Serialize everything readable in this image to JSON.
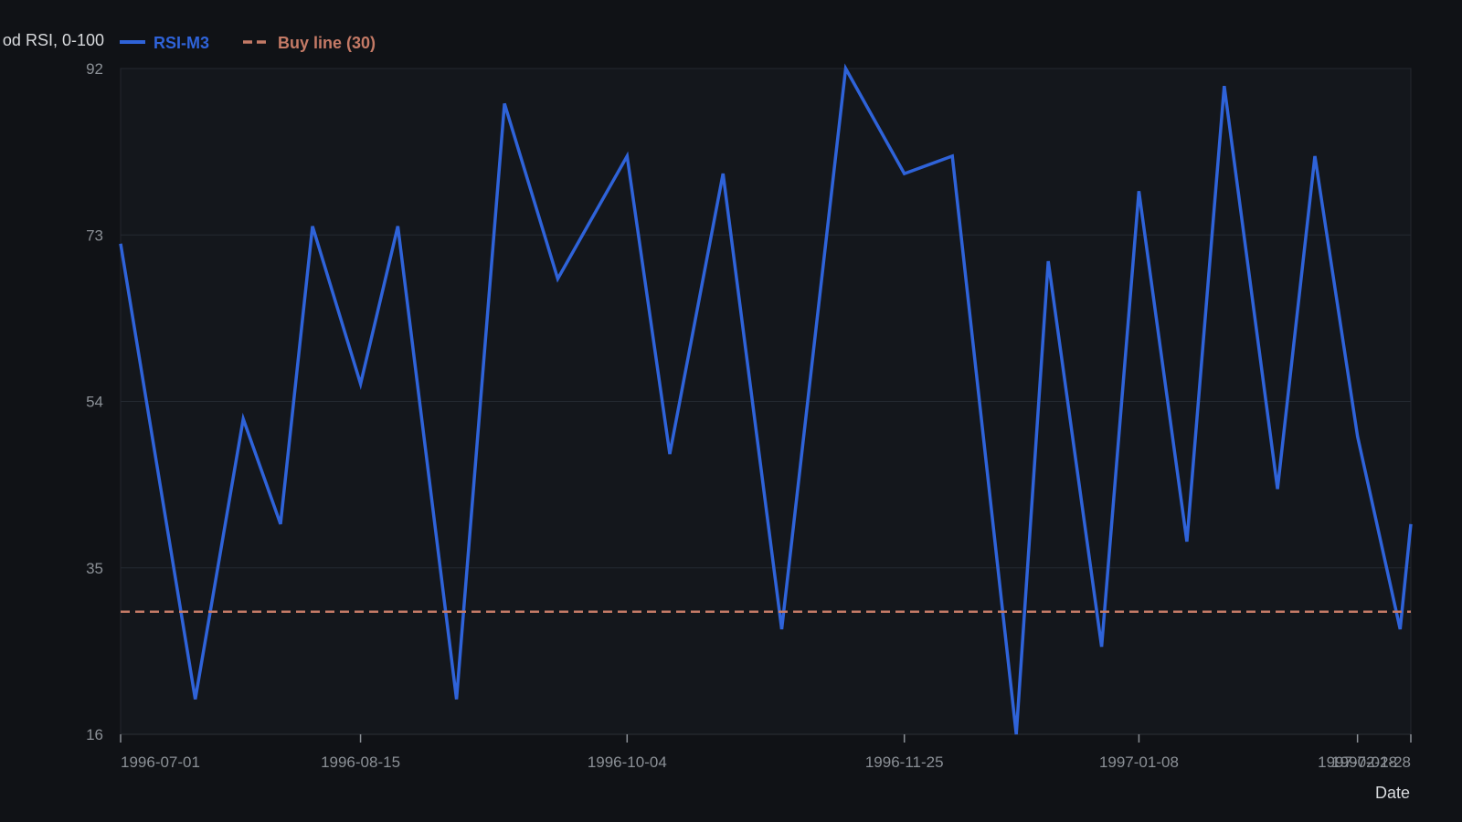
{
  "chart_data": {
    "type": "line",
    "title": "",
    "xlabel": "Date",
    "ylabel": "od RSI, 0-100",
    "ylim": [
      16,
      92
    ],
    "yticks": [
      16,
      35,
      54,
      73,
      92
    ],
    "xlim": [
      "1996-07-01",
      "1997-02-28"
    ],
    "xticks": [
      "1996-07-01",
      "1996-08-15",
      "1996-10-04",
      "1996-11-25",
      "1997-01-08",
      "1997-02-18",
      "1997-02-28"
    ],
    "grid": true,
    "legend_position": "top-left",
    "series": [
      {
        "name": "RSI-M3",
        "color": "#2f63d9",
        "style": "solid",
        "x": [
          "1996-07-01",
          "1996-07-15",
          "1996-07-24",
          "1996-07-31",
          "1996-08-06",
          "1996-08-15",
          "1996-08-22",
          "1996-09-02",
          "1996-09-11",
          "1996-09-21",
          "1996-10-04",
          "1996-10-12",
          "1996-10-22",
          "1996-11-02",
          "1996-11-14",
          "1996-11-25",
          "1996-12-04",
          "1996-12-16",
          "1996-12-22",
          "1997-01-01",
          "1997-01-08",
          "1997-01-17",
          "1997-01-24",
          "1997-02-03",
          "1997-02-10",
          "1997-02-18",
          "1997-02-26",
          "1997-02-28"
        ],
        "y": [
          72,
          20,
          52,
          40,
          74,
          56,
          74,
          20,
          88,
          68,
          82,
          48,
          80,
          28,
          92,
          80,
          82,
          16,
          70,
          26,
          78,
          38,
          90,
          44,
          82,
          50,
          28,
          40
        ]
      },
      {
        "name": "Buy line (30)",
        "color": "#c47a66",
        "style": "dashed",
        "x": [
          "1996-07-01",
          "1997-02-28"
        ],
        "y": [
          30,
          30
        ]
      }
    ]
  }
}
